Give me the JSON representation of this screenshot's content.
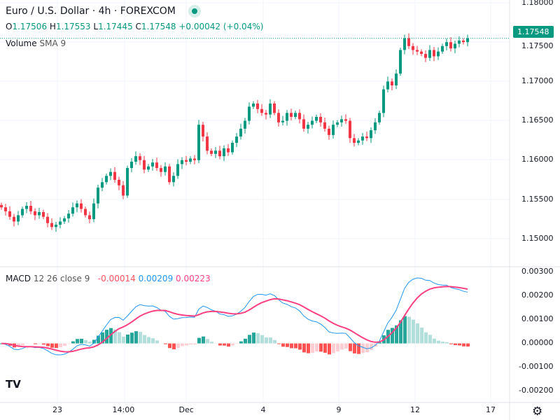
{
  "header": {
    "title": "Euro / U.S. Dollar · 4h · FOREXCOM",
    "o_label": "O",
    "o": "1.17506",
    "h_label": "H",
    "h": "1.17553",
    "l_label": "L",
    "l": "1.17445",
    "c_label": "C",
    "c": "1.17548",
    "change": "+0.00042 (+0.04%)",
    "volume_label": "Volume",
    "volume_sma": "SMA 9"
  },
  "macd_legend": {
    "name": "MACD",
    "params": "12 26 close 9",
    "hist": "-0.00014",
    "macd": "0.00209",
    "signal": "0.00223"
  },
  "colors": {
    "up": "#089981",
    "down": "#f23645",
    "macd": "#2962ff",
    "signal": "#ff4081"
  },
  "chart_data": {
    "type": "candlestick",
    "symbol": "EURUSD",
    "interval": "4h",
    "last_price": "1.17548",
    "price_ticks": [
      "1.18000",
      "1.17500",
      "1.17000",
      "1.16500",
      "1.16000",
      "1.15500",
      "1.15000"
    ],
    "price_ylim": [
      1.1495,
      1.1805
    ],
    "macd_ticks": [
      "0.00300",
      "0.00200",
      "0.00100",
      "0.00000",
      "-0.00100",
      "-0.00200"
    ],
    "macd_ylim": [
      -0.0022,
      0.0032
    ],
    "x_ticks": [
      "23",
      "14:00",
      "Dec",
      "4",
      "9",
      "12",
      "17"
    ],
    "close": [
      1.154,
      1.1535,
      1.1528,
      1.1522,
      1.153,
      1.1538,
      1.1542,
      1.1535,
      1.153,
      1.1534,
      1.1528,
      1.152,
      1.1515,
      1.1518,
      1.1522,
      1.1526,
      1.1532,
      1.154,
      1.1545,
      1.1538,
      1.153,
      1.1525,
      1.1545,
      1.1565,
      1.1572,
      1.158,
      1.1585,
      1.1575,
      1.1568,
      1.1555,
      1.159,
      1.1598,
      1.1605,
      1.16,
      1.1588,
      1.1592,
      1.1597,
      1.159,
      1.1585,
      1.1592,
      1.1572,
      1.158,
      1.1595,
      1.16,
      1.1598,
      1.1602,
      1.16,
      1.1645,
      1.163,
      1.1612,
      1.1608,
      1.1612,
      1.1605,
      1.1615,
      1.161,
      1.1622,
      1.163,
      1.164,
      1.165,
      1.1668,
      1.1672,
      1.1665,
      1.166,
      1.1658,
      1.1672,
      1.166,
      1.1648,
      1.165,
      1.166,
      1.1655,
      1.166,
      1.1652,
      1.164,
      1.1645,
      1.165,
      1.1655,
      1.1648,
      1.164,
      1.1632,
      1.1645,
      1.1648,
      1.1652,
      1.165,
      1.1628,
      1.1622,
      1.1625,
      1.163,
      1.1628,
      1.1638,
      1.1648,
      1.166,
      1.169,
      1.17,
      1.1695,
      1.171,
      1.174,
      1.1755,
      1.1745,
      1.174,
      1.1738,
      1.1735,
      1.173,
      1.174,
      1.1732,
      1.1738,
      1.1745,
      1.175,
      1.1742,
      1.1748,
      1.1752,
      1.175,
      1.1755
    ]
  }
}
